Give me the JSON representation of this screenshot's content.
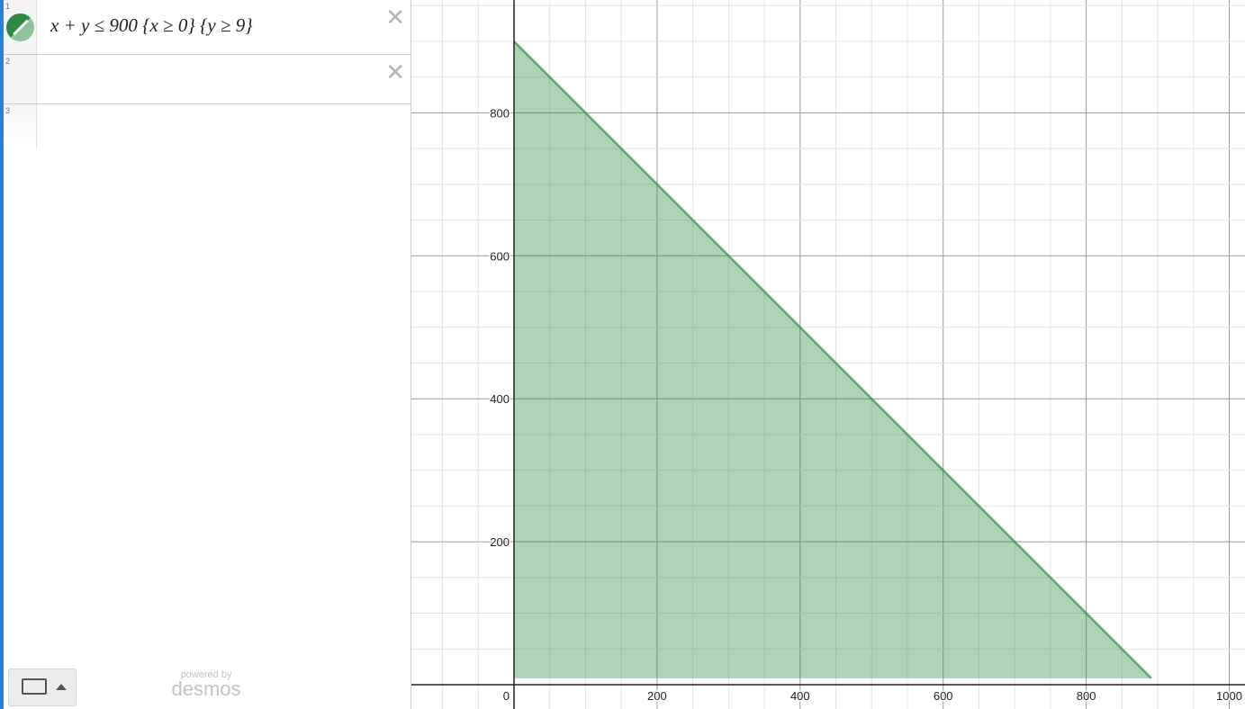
{
  "expressions": [
    {
      "index": "1",
      "latex": "x + y  ≤ 900  {x ≥ 0} {y ≥ 9}",
      "color": "#2d8a45"
    },
    {
      "index": "2",
      "latex": ""
    },
    {
      "index": "3",
      "latex": ""
    }
  ],
  "footer": {
    "powered": "powered by",
    "brand": "desmos"
  },
  "graph": {
    "x_ticks": [
      "0",
      "200",
      "400",
      "600",
      "800",
      "1000"
    ],
    "y_ticks": [
      "200",
      "400",
      "600",
      "800"
    ],
    "xlim": [
      -143,
      1022
    ],
    "ylim": [
      -34,
      958
    ],
    "region": {
      "inequality": "x + y <= 900",
      "x_min": 0,
      "y_min": 9,
      "fill": "#2d8a45"
    }
  }
}
